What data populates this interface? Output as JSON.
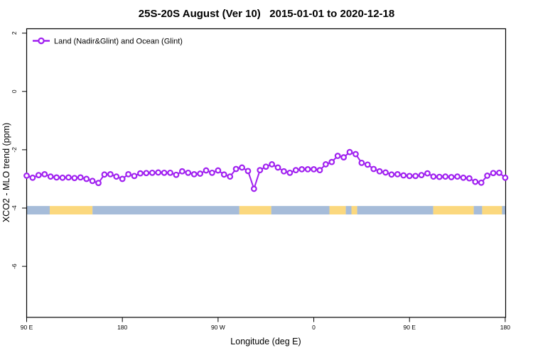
{
  "chart_data": {
    "type": "line",
    "title": "25S-20S August (Ver 10)   2015-01-01 to 2020-12-18",
    "xlabel": "Longitude (deg E)",
    "ylabel": "XCO2 - MLO trend (ppm)",
    "legend": [
      "Land (Nadir&Glint) and Ocean (Glint)"
    ],
    "legend_position": "top-left",
    "grid": false,
    "xlim": [
      90,
      540.4
    ],
    "ylim": [
      -7.75,
      2.15
    ],
    "xticks": {
      "values": [
        90,
        180,
        270,
        360,
        450,
        540
      ],
      "labels": [
        "90 E",
        "180",
        "90 W",
        "0",
        "90 E",
        "180"
      ]
    },
    "yticks": {
      "values": [
        2,
        0,
        -2,
        -4,
        -6
      ],
      "labels": [
        "2",
        "0",
        "-2",
        "-4",
        "-6"
      ]
    },
    "colors": {
      "line": "#A020F0",
      "marker_fill": "#FFFFFF",
      "ocean": "#A6BCD9",
      "land": "#FBD87E"
    },
    "series": [
      {
        "name": "Land (Nadir&Glint) and Ocean (Glint)",
        "x": [
          90,
          95.625,
          101.25,
          106.875,
          112.5,
          118.125,
          123.75,
          129.375,
          135,
          140.625,
          146.25,
          151.875,
          157.5,
          163.125,
          168.75,
          174.375,
          180,
          185.625,
          191.25,
          196.875,
          202.5,
          208.125,
          213.75,
          219.375,
          225,
          230.625,
          236.25,
          241.875,
          247.5,
          253.125,
          258.75,
          264.375,
          270,
          275.625,
          281.25,
          286.875,
          292.5,
          298.125,
          303.75,
          309.375,
          315,
          320.625,
          326.25,
          331.875,
          337.5,
          343.125,
          348.75,
          354.375,
          360,
          365.625,
          371.25,
          376.875,
          382.5,
          388.125,
          393.75,
          399.375,
          405,
          410.625,
          416.25,
          421.875,
          427.5,
          433.125,
          438.75,
          444.375,
          450,
          455.625,
          461.25,
          466.875,
          472.5,
          478.125,
          483.75,
          489.375,
          495,
          500.625,
          506.25,
          511.875,
          517.5,
          523.125,
          528.75,
          534.375,
          540
        ],
        "y": [
          -2.89,
          -2.96,
          -2.87,
          -2.84,
          -2.92,
          -2.95,
          -2.96,
          -2.95,
          -2.97,
          -2.95,
          -3.0,
          -3.07,
          -3.14,
          -2.85,
          -2.84,
          -2.92,
          -3.0,
          -2.84,
          -2.9,
          -2.81,
          -2.8,
          -2.79,
          -2.78,
          -2.79,
          -2.79,
          -2.86,
          -2.74,
          -2.79,
          -2.84,
          -2.82,
          -2.71,
          -2.79,
          -2.71,
          -2.85,
          -2.92,
          -2.66,
          -2.61,
          -2.73,
          -3.34,
          -2.7,
          -2.58,
          -2.5,
          -2.61,
          -2.74,
          -2.79,
          -2.7,
          -2.67,
          -2.67,
          -2.67,
          -2.7,
          -2.5,
          -2.42,
          -2.21,
          -2.26,
          -2.08,
          -2.15,
          -2.45,
          -2.51,
          -2.66,
          -2.74,
          -2.78,
          -2.85,
          -2.84,
          -2.88,
          -2.9,
          -2.9,
          -2.87,
          -2.81,
          -2.92,
          -2.93,
          -2.92,
          -2.94,
          -2.92,
          -2.96,
          -2.98,
          -3.1,
          -3.13,
          -2.89,
          -2.8,
          -2.79,
          -2.96
        ]
      }
    ],
    "surface_band": {
      "description": "land/ocean indicator strip",
      "y_range": [
        -3.93,
        -4.22
      ],
      "segments": [
        {
          "from": 90,
          "to": 111.7,
          "type": "ocean"
        },
        {
          "from": 111.7,
          "to": 151.9,
          "type": "land"
        },
        {
          "from": 151.9,
          "to": 290.0,
          "type": "ocean"
        },
        {
          "from": 290.0,
          "to": 320.0,
          "type": "land"
        },
        {
          "from": 320.0,
          "to": 374.7,
          "type": "ocean"
        },
        {
          "from": 374.7,
          "to": 390.1,
          "type": "land"
        },
        {
          "from": 390.1,
          "to": 395.4,
          "type": "ocean"
        },
        {
          "from": 395.4,
          "to": 400.8,
          "type": "land"
        },
        {
          "from": 400.8,
          "to": 472.3,
          "type": "ocean"
        },
        {
          "from": 472.3,
          "to": 510.4,
          "type": "land"
        },
        {
          "from": 510.4,
          "to": 518.3,
          "type": "ocean"
        },
        {
          "from": 518.3,
          "to": 537.0,
          "type": "land"
        },
        {
          "from": 537.0,
          "to": 540.4,
          "type": "ocean"
        }
      ]
    }
  }
}
